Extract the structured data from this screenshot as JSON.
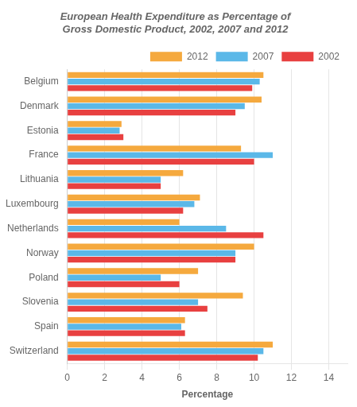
{
  "chart_data": {
    "type": "bar",
    "orientation": "horizontal",
    "title": "European Health Expenditure as Percentage of\nGross Domestic Product, 2002, 2007 and 2012",
    "categories": [
      "Belgium",
      "Denmark",
      "Estonia",
      "France",
      "Lithuania",
      "Luxembourg",
      "Netherlands",
      "Norway",
      "Poland",
      "Slovenia",
      "Spain",
      "Switzerland"
    ],
    "series": [
      {
        "name": "2012",
        "color": "#F5A93E",
        "values": [
          10.5,
          10.4,
          2.9,
          9.3,
          6.2,
          7.1,
          6.0,
          10.0,
          7.0,
          9.4,
          6.3,
          11.0
        ]
      },
      {
        "name": "2007",
        "color": "#5BB8E8",
        "values": [
          10.3,
          9.5,
          2.8,
          11.0,
          5.0,
          6.8,
          8.5,
          9.0,
          5.0,
          7.0,
          6.1,
          10.5
        ]
      },
      {
        "name": "2002",
        "color": "#E84040",
        "values": [
          9.9,
          9.0,
          3.0,
          10.0,
          5.0,
          6.2,
          10.5,
          9.0,
          6.0,
          7.5,
          6.3,
          10.2
        ]
      }
    ],
    "xlabel": "Percentage",
    "xlim": [
      0,
      15
    ],
    "xticks": [
      0,
      2,
      4,
      6,
      8,
      10,
      12,
      14
    ],
    "grid": true,
    "legend": "upper right"
  }
}
